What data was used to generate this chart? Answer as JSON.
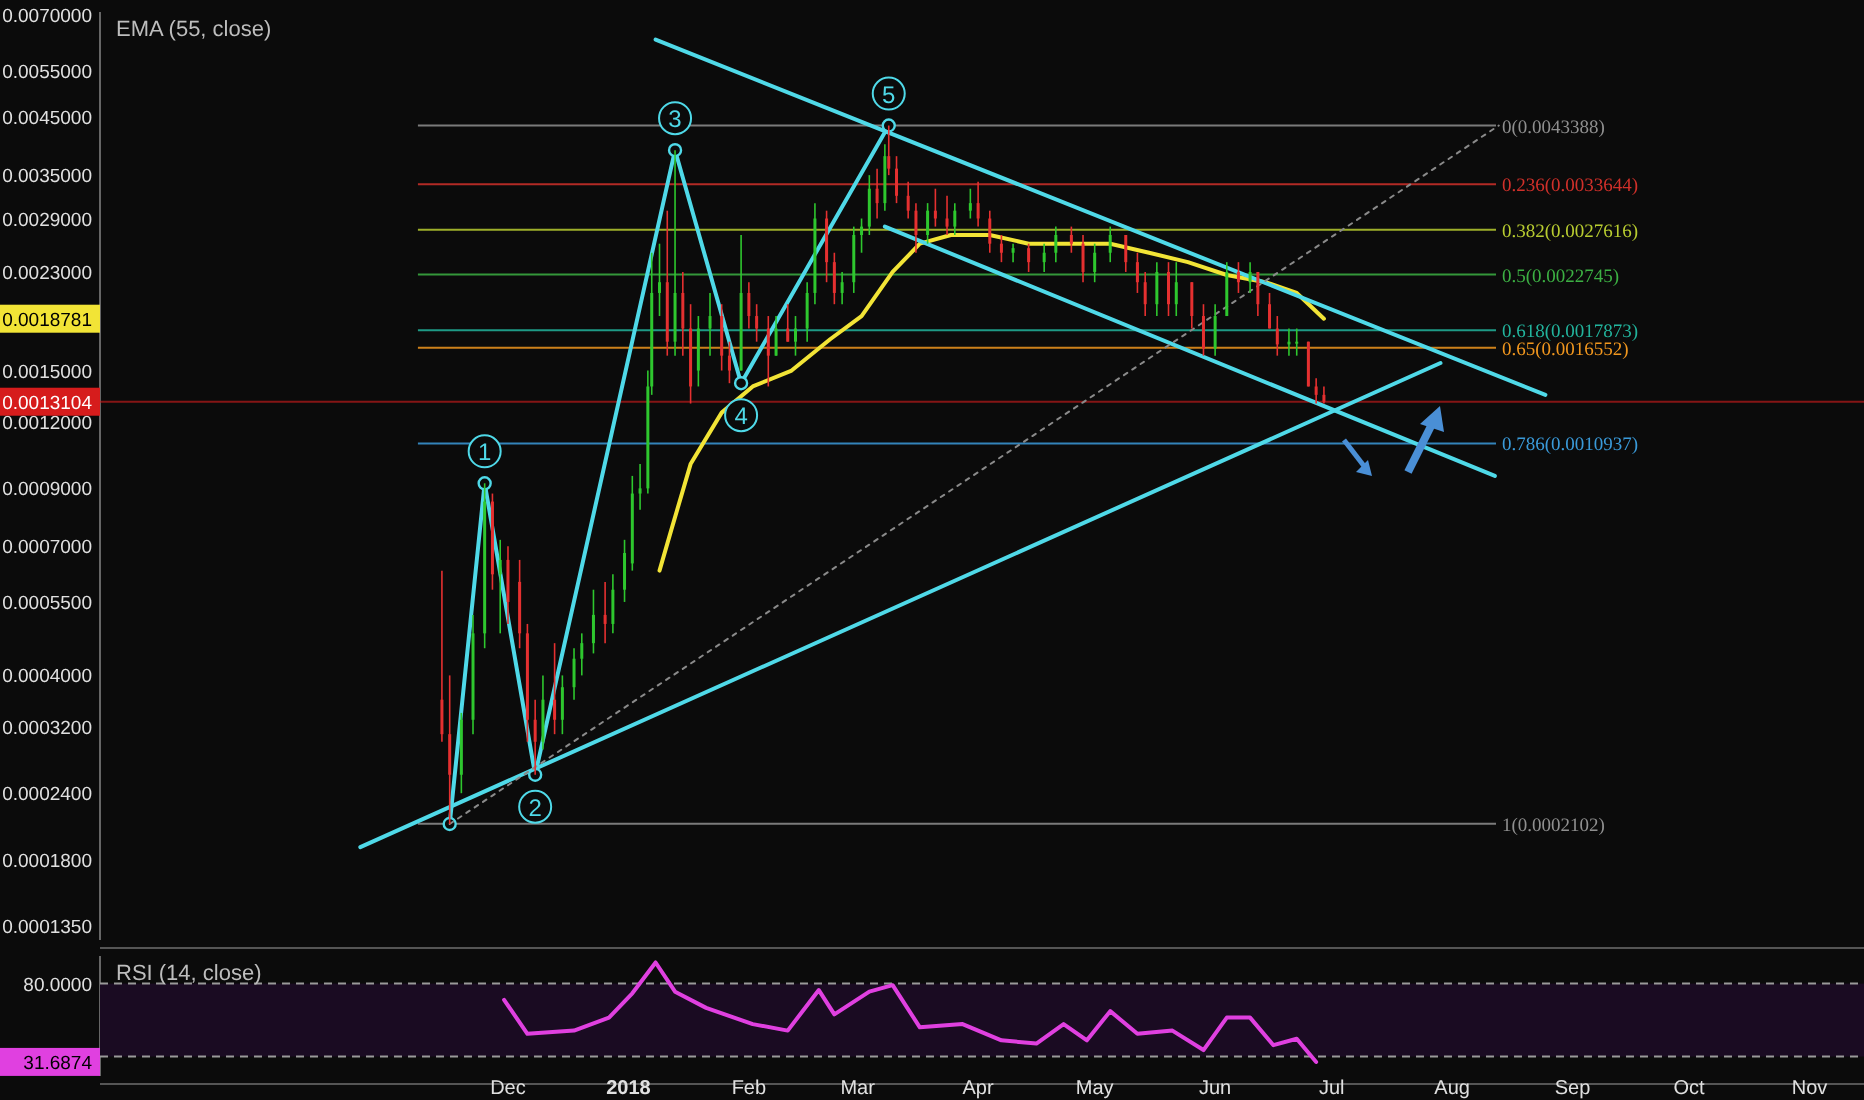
{
  "chart_data": [
    {
      "type": "candlestick",
      "log": true,
      "tick_labels": "y",
      "xlim": [
        "2017-08-18",
        "2018-11-15"
      ],
      "ylim": [
        0.000127,
        0.0071
      ],
      "yticks": [
        {
          "value": 0.000135,
          "label": "0.0001350"
        },
        {
          "value": 0.00018,
          "label": "0.0001800"
        },
        {
          "value": 0.00024,
          "label": "0.0002400"
        },
        {
          "value": 0.00032,
          "label": "0.0003200"
        },
        {
          "value": 0.0004,
          "label": "0.0004000"
        },
        {
          "value": 0.00055,
          "label": "0.0005500"
        },
        {
          "value": 0.0007,
          "label": "0.0007000"
        },
        {
          "value": 0.0009,
          "label": "0.0009000"
        },
        {
          "value": 0.0012,
          "label": "0.0012000"
        },
        {
          "value": 0.0015,
          "label": "0.0015000"
        },
        {
          "value": 0.0018781,
          "label": "0.0018781"
        },
        {
          "value": 0.0023,
          "label": "0.0023000"
        },
        {
          "value": 0.0029,
          "label": "0.0029000"
        },
        {
          "value": 0.0035,
          "label": "0.0035000"
        },
        {
          "value": 0.0045,
          "label": "0.0045000"
        },
        {
          "value": 0.0055,
          "label": "0.0055000"
        },
        {
          "value": 0.007,
          "label": "0.0070000"
        }
      ],
      "x": [
        "2017-11-14",
        "2017-11-16",
        "2017-11-19",
        "2017-11-22",
        "2017-11-25",
        "2017-11-27",
        "2017-11-29",
        "2017-12-01",
        "2017-12-04",
        "2017-12-06",
        "2017-12-08",
        "2017-12-10",
        "2017-12-13",
        "2017-12-15",
        "2017-12-18",
        "2017-12-20",
        "2017-12-23",
        "2017-12-26",
        "2017-12-28",
        "2017-12-31",
        "2018-01-02",
        "2018-01-04",
        "2018-01-06",
        "2018-01-07",
        "2018-01-09",
        "2018-01-11",
        "2018-01-13",
        "2018-01-15",
        "2018-01-17",
        "2018-01-19",
        "2018-01-22",
        "2018-01-25",
        "2018-01-27",
        "2018-01-30",
        "2018-02-01",
        "2018-02-03",
        "2018-02-06",
        "2018-02-08",
        "2018-02-11",
        "2018-02-13",
        "2018-02-16",
        "2018-02-18",
        "2018-02-21",
        "2018-02-23",
        "2018-02-25",
        "2018-02-28",
        "2018-03-02",
        "2018-03-04",
        "2018-03-06",
        "2018-03-08",
        "2018-03-09",
        "2018-03-11",
        "2018-03-14",
        "2018-03-16",
        "2018-03-19",
        "2018-03-21",
        "2018-03-24",
        "2018-03-26",
        "2018-03-30",
        "2018-04-01",
        "2018-04-04",
        "2018-04-07",
        "2018-04-10",
        "2018-04-14",
        "2018-04-18",
        "2018-04-21",
        "2018-04-25",
        "2018-04-28",
        "2018-05-01",
        "2018-05-05",
        "2018-05-09",
        "2018-05-12",
        "2018-05-14",
        "2018-05-17",
        "2018-05-20",
        "2018-05-22",
        "2018-05-26",
        "2018-05-29",
        "2018-06-01",
        "2018-06-04",
        "2018-06-07",
        "2018-06-10",
        "2018-06-12",
        "2018-06-15",
        "2018-06-17",
        "2018-06-20",
        "2018-06-22",
        "2018-06-25",
        "2018-06-27",
        "2018-06-29"
      ],
      "ohlc": [
        [
          0.00036,
          0.00063,
          0.0003,
          0.00031
        ],
        [
          0.00031,
          0.0004,
          0.00021,
          0.00026
        ],
        [
          0.00026,
          0.00034,
          0.00024,
          0.00033
        ],
        [
          0.00033,
          0.00052,
          0.00031,
          0.00048
        ],
        [
          0.00048,
          0.00092,
          0.00045,
          0.00085
        ],
        [
          0.00085,
          0.00088,
          0.00058,
          0.00062
        ],
        [
          0.00062,
          0.00072,
          0.00048,
          0.00066
        ],
        [
          0.00066,
          0.0007,
          0.0005,
          0.00055
        ],
        [
          0.0006,
          0.00066,
          0.00045,
          0.00048
        ],
        [
          0.00048,
          0.0005,
          0.0003,
          0.00033
        ],
        [
          0.00033,
          0.00036,
          0.00026,
          0.0003
        ],
        [
          0.0003,
          0.0004,
          0.00029,
          0.00036
        ],
        [
          0.00036,
          0.00046,
          0.00031,
          0.00033
        ],
        [
          0.00033,
          0.0004,
          0.00031,
          0.00038
        ],
        [
          0.00038,
          0.00045,
          0.00036,
          0.00043
        ],
        [
          0.00043,
          0.00048,
          0.0004,
          0.00046
        ],
        [
          0.00046,
          0.00058,
          0.00044,
          0.00052
        ],
        [
          0.00052,
          0.0006,
          0.00046,
          0.0005
        ],
        [
          0.0005,
          0.00062,
          0.00048,
          0.00058
        ],
        [
          0.00058,
          0.00072,
          0.00055,
          0.00068
        ],
        [
          0.00065,
          0.00095,
          0.00063,
          0.00088
        ],
        [
          0.00088,
          0.001,
          0.00082,
          0.0009
        ],
        [
          0.0009,
          0.0015,
          0.00088,
          0.0014
        ],
        [
          0.0014,
          0.0025,
          0.00135,
          0.0021
        ],
        [
          0.0021,
          0.0026,
          0.0019,
          0.0022
        ],
        [
          0.0022,
          0.003,
          0.0016,
          0.0017
        ],
        [
          0.0017,
          0.0039,
          0.0016,
          0.0021
        ],
        [
          0.0021,
          0.0023,
          0.0016,
          0.0018
        ],
        [
          0.0018,
          0.002,
          0.0013,
          0.0014
        ],
        [
          0.0015,
          0.0019,
          0.0014,
          0.0018
        ],
        [
          0.0018,
          0.0021,
          0.0016,
          0.0019
        ],
        [
          0.0019,
          0.002,
          0.0015,
          0.0016
        ],
        [
          0.0016,
          0.0017,
          0.00142,
          0.0015
        ],
        [
          0.0015,
          0.0027,
          0.0015,
          0.0021
        ],
        [
          0.0021,
          0.0022,
          0.0018,
          0.0019
        ],
        [
          0.0019,
          0.002,
          0.0017,
          0.0018
        ],
        [
          0.0018,
          0.0019,
          0.0014,
          0.0016
        ],
        [
          0.0016,
          0.0019,
          0.0016,
          0.0018
        ],
        [
          0.0018,
          0.002,
          0.0017,
          0.0017
        ],
        [
          0.0017,
          0.0019,
          0.0016,
          0.0018
        ],
        [
          0.0018,
          0.0022,
          0.0017,
          0.0021
        ],
        [
          0.0021,
          0.0031,
          0.002,
          0.0029
        ],
        [
          0.0029,
          0.003,
          0.0022,
          0.0024
        ],
        [
          0.0024,
          0.0025,
          0.002,
          0.0021
        ],
        [
          0.0021,
          0.0023,
          0.002,
          0.0022
        ],
        [
          0.0022,
          0.0028,
          0.0021,
          0.0027
        ],
        [
          0.0027,
          0.0029,
          0.0025,
          0.0028
        ],
        [
          0.0028,
          0.0035,
          0.0027,
          0.0033
        ],
        [
          0.0033,
          0.0036,
          0.0029,
          0.0031
        ],
        [
          0.0031,
          0.004,
          0.003,
          0.0038
        ],
        [
          0.0038,
          0.00434,
          0.0035,
          0.0036
        ],
        [
          0.0036,
          0.0038,
          0.0031,
          0.0032
        ],
        [
          0.0032,
          0.0034,
          0.0029,
          0.003
        ],
        [
          0.003,
          0.0031,
          0.0025,
          0.0027
        ],
        [
          0.0027,
          0.0031,
          0.0026,
          0.003
        ],
        [
          0.003,
          0.0033,
          0.0028,
          0.0029
        ],
        [
          0.0029,
          0.0032,
          0.0027,
          0.0028
        ],
        [
          0.0028,
          0.0031,
          0.0027,
          0.003
        ],
        [
          0.003,
          0.0033,
          0.0029,
          0.0031
        ],
        [
          0.0031,
          0.0034,
          0.0028,
          0.0029
        ],
        [
          0.0029,
          0.003,
          0.0025,
          0.0026
        ],
        [
          0.0026,
          0.0027,
          0.0024,
          0.0025
        ],
        [
          0.0025,
          0.0026,
          0.0024,
          0.00255
        ],
        [
          0.00255,
          0.0026,
          0.0023,
          0.0024
        ],
        [
          0.0024,
          0.0026,
          0.0023,
          0.0025
        ],
        [
          0.0025,
          0.0028,
          0.0024,
          0.0027
        ],
        [
          0.0027,
          0.0028,
          0.0025,
          0.0026
        ],
        [
          0.0026,
          0.0027,
          0.0022,
          0.0023
        ],
        [
          0.0023,
          0.0026,
          0.0022,
          0.0025
        ],
        [
          0.0025,
          0.0028,
          0.0024,
          0.0027
        ],
        [
          0.0027,
          0.0027,
          0.0023,
          0.0024
        ],
        [
          0.0024,
          0.0025,
          0.0021,
          0.0022
        ],
        [
          0.0022,
          0.0023,
          0.0019,
          0.002
        ],
        [
          0.002,
          0.0024,
          0.0019,
          0.0023
        ],
        [
          0.0023,
          0.0024,
          0.0019,
          0.002
        ],
        [
          0.002,
          0.0024,
          0.0019,
          0.0022
        ],
        [
          0.0022,
          0.0022,
          0.0018,
          0.0019
        ],
        [
          0.0019,
          0.002,
          0.0016,
          0.00165
        ],
        [
          0.00165,
          0.002,
          0.0016,
          0.0019
        ],
        [
          0.0019,
          0.0024,
          0.0019,
          0.0023
        ],
        [
          0.0023,
          0.0024,
          0.0021,
          0.0022
        ],
        [
          0.0022,
          0.0024,
          0.0021,
          0.0023
        ],
        [
          0.0023,
          0.0023,
          0.0019,
          0.002
        ],
        [
          0.002,
          0.0021,
          0.0018,
          0.0018
        ],
        [
          0.0018,
          0.0019,
          0.0016,
          0.00168
        ],
        [
          0.00168,
          0.0018,
          0.0016,
          0.0017
        ],
        [
          0.0017,
          0.0018,
          0.0016,
          0.0017
        ],
        [
          0.0017,
          0.0017,
          0.0014,
          0.0014
        ],
        [
          0.0014,
          0.00145,
          0.0013,
          0.00135
        ],
        [
          0.00135,
          0.0014,
          0.0013,
          0.0013104
        ]
      ],
      "series": [
        {
          "type": "line",
          "color": "#f2e436",
          "x": [
            "2018-01-09",
            "2018-01-12",
            "2018-01-17",
            "2018-01-25",
            "2018-02-02",
            "2018-02-12",
            "2018-02-22",
            "2018-03-02",
            "2018-03-10",
            "2018-03-17",
            "2018-03-25",
            "2018-04-04",
            "2018-04-14",
            "2018-04-25",
            "2018-05-05",
            "2018-05-15",
            "2018-05-25",
            "2018-06-04",
            "2018-06-14",
            "2018-06-22",
            "2018-06-29"
          ],
          "values": [
            0.00063,
            0.00075,
            0.001,
            0.00125,
            0.0014,
            0.0015,
            0.00172,
            0.0019,
            0.0023,
            0.0026,
            0.0027,
            0.0027,
            0.0026,
            0.0026,
            0.0026,
            0.0025,
            0.0024,
            0.00227,
            0.0022,
            0.0021,
            0.0018781
          ]
        },
        {
          "type": "line",
          "color": "#4fd9e8",
          "marker": "circle",
          "x": [
            "2017-11-16",
            "2017-11-25",
            "2017-12-08",
            "2018-01-13",
            "2018-01-30",
            "2018-03-09"
          ],
          "values": [
            0.00021,
            0.00092,
            0.00026,
            0.0039,
            0.00142,
            0.00434
          ]
        },
        {
          "type": "line",
          "color": "#4fd9e8",
          "x": [
            "2017-10-24",
            "2018-07-29"
          ],
          "values": [
            0.00019,
            0.00155
          ]
        },
        {
          "type": "line",
          "color": "#4fd9e8",
          "x": [
            "2018-01-08",
            "2018-08-25"
          ],
          "values": [
            0.0063,
            0.00135
          ]
        },
        {
          "type": "line",
          "color": "#4fd9e8",
          "x": [
            "2018-03-08",
            "2018-08-12"
          ],
          "values": [
            0.0028,
            0.00095
          ]
        },
        {
          "type": "line",
          "color": "#8a8a8a",
          "line_style": "dotted",
          "x": [
            "2017-11-16",
            "2018-08-13"
          ],
          "values": [
            0.00021,
            0.00434
          ]
        }
      ],
      "ref_lines": [
        {
          "axis": "y",
          "value": 0.0013104,
          "label": "0.0013104",
          "color": "#d61c1c",
          "line_style": "solid"
        },
        {
          "axis": "y",
          "value": 0.0043388,
          "label": "0(0.0043388)",
          "color": "#8f8f8f"
        },
        {
          "axis": "y",
          "value": 0.0033644,
          "label": "0.236(0.0033644)",
          "color": "#d0302a"
        },
        {
          "axis": "y",
          "value": 0.0027616,
          "label": "0.382(0.0027616)",
          "color": "#b8cc30"
        },
        {
          "axis": "y",
          "value": 0.0022745,
          "label": "0.5(0.0022745)",
          "color": "#3cb043"
        },
        {
          "axis": "y",
          "value": 0.0017873,
          "label": "0.618(0.0017873)",
          "color": "#22b39c"
        },
        {
          "axis": "y",
          "value": 0.0016552,
          "label": "0.65(0.0016552)",
          "color": "#f0961e"
        },
        {
          "axis": "y",
          "value": 0.0010937,
          "label": "0.786(0.0010937)",
          "color": "#3a9ad9"
        },
        {
          "axis": "y",
          "value": 0.0002102,
          "label": "1(0.0002102)",
          "color": "#8f8f8f"
        }
      ],
      "annotations": [
        "EMA (55, close)",
        {
          "text": "1",
          "x": "2017-11-25",
          "y": 0.00092
        },
        {
          "text": "2",
          "x": "2017-12-08",
          "y": 0.00026
        },
        {
          "text": "3",
          "x": "2018-01-13",
          "y": 0.0039
        },
        {
          "text": "4",
          "x": "2018-01-30",
          "y": 0.00142
        },
        {
          "text": "5",
          "x": "2018-03-09",
          "y": 0.00434
        }
      ]
    },
    {
      "type": "line",
      "xlim": [
        "2017-08-18",
        "2018-11-15"
      ],
      "ylim": [
        23,
        97
      ],
      "yticks": [
        {
          "value": 31.6874,
          "label": "31.6874"
        },
        {
          "value": 80,
          "label": "80.0000"
        }
      ],
      "xticks": [
        {
          "value": "2017-12-01",
          "label": "Dec"
        },
        {
          "value": "2018-01-01",
          "label": "2018"
        },
        {
          "value": "2018-02-01",
          "label": "Feb"
        },
        {
          "value": "2018-03-01",
          "label": "Mar"
        },
        {
          "value": "2018-04-01",
          "label": "Apr"
        },
        {
          "value": "2018-05-01",
          "label": "May"
        },
        {
          "value": "2018-06-01",
          "label": "Jun"
        },
        {
          "value": "2018-07-01",
          "label": "Jul"
        },
        {
          "value": "2018-08-01",
          "label": "Aug"
        },
        {
          "value": "2018-09-01",
          "label": "Sep"
        },
        {
          "value": "2018-10-01",
          "label": "Oct"
        },
        {
          "value": "2018-11-01",
          "label": "Nov"
        }
      ],
      "series": [
        {
          "color": "#e040e0",
          "x": [
            "2017-11-30",
            "2017-12-06",
            "2017-12-18",
            "2017-12-27",
            "2018-01-02",
            "2018-01-08",
            "2018-01-13",
            "2018-01-21",
            "2018-02-02",
            "2018-02-11",
            "2018-02-19",
            "2018-02-23",
            "2018-03-04",
            "2018-03-10",
            "2018-03-17",
            "2018-03-28",
            "2018-04-07",
            "2018-04-16",
            "2018-04-23",
            "2018-04-29",
            "2018-05-05",
            "2018-05-12",
            "2018-05-21",
            "2018-05-29",
            "2018-06-04",
            "2018-06-10",
            "2018-06-16",
            "2018-06-22",
            "2018-06-27"
          ],
          "values": [
            70,
            49,
            51,
            59,
            74,
            93,
            75,
            65,
            55,
            51,
            76,
            61,
            75,
            79,
            53,
            55,
            45,
            43,
            55,
            45,
            63,
            49,
            51,
            39,
            59,
            59,
            42,
            46,
            31.6874
          ]
        }
      ],
      "bands": [
        {
          "axis": "y",
          "from": 35,
          "to": 80,
          "color": "#1a0b22"
        }
      ],
      "ref_lines": [
        {
          "axis": "y",
          "value": 80,
          "color": "#9a9a9a",
          "line_style": "dashed"
        },
        {
          "axis": "y",
          "value": 35,
          "color": "#9a9a9a",
          "line_style": "dashed"
        }
      ],
      "annotations": [
        "RSI (14, close)"
      ]
    }
  ]
}
